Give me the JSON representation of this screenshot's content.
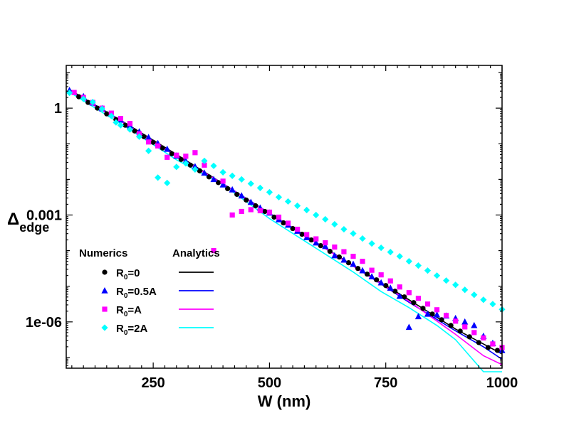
{
  "chart_data": {
    "type": "scatter",
    "title": "",
    "xlabel": "W (nm)",
    "ylabel": {
      "main": "Δ",
      "sub": "edge"
    },
    "xlim": [
      63,
      1000
    ],
    "ylim_log10": [
      -7.3,
      1.2
    ],
    "yscale": "log",
    "grid": false,
    "x_ticks": [
      250,
      500,
      750,
      1000
    ],
    "x_tick_labels": [
      "250",
      "500",
      "750",
      "1000"
    ],
    "y_ticks": [
      1,
      0.001,
      1e-06
    ],
    "y_tick_labels": [
      "1",
      "0.001",
      "1e-06"
    ],
    "legend": {
      "position": "bottom-left",
      "numerics_header": "Numerics",
      "analytics_header": "Analytics",
      "entries": [
        {
          "main": "R",
          "sub": "0",
          "suffix": "=0",
          "color": "#000000",
          "marker": "circle"
        },
        {
          "main": "R",
          "sub": "0",
          "suffix": "=0.5A",
          "color": "#0000ff",
          "marker": "triangle"
        },
        {
          "main": "R",
          "sub": "0",
          "suffix": "=A",
          "color": "#ff00ff",
          "marker": "square"
        },
        {
          "main": "R",
          "sub": "0",
          "suffix": "=2A",
          "color": "#00ffff",
          "marker": "diamond"
        }
      ]
    },
    "series": [
      {
        "name": "R0=0 (Numerics)",
        "kind": "markers",
        "marker": "circle",
        "color": "#000000",
        "x": [
          70,
          90,
          110,
          130,
          150,
          170,
          190,
          210,
          230,
          250,
          270,
          290,
          310,
          330,
          350,
          370,
          390,
          410,
          430,
          450,
          470,
          490,
          510,
          530,
          550,
          570,
          590,
          610,
          630,
          650,
          670,
          690,
          710,
          730,
          750,
          770,
          790,
          810,
          830,
          850,
          870,
          890,
          910,
          930,
          950,
          970,
          990
        ],
        "log10y": [
          0.45,
          0.32,
          0.16,
          0.0,
          -0.16,
          -0.32,
          -0.48,
          -0.64,
          -0.8,
          -0.96,
          -1.12,
          -1.28,
          -1.44,
          -1.6,
          -1.76,
          -1.93,
          -2.09,
          -2.26,
          -2.42,
          -2.58,
          -2.74,
          -2.9,
          -3.06,
          -3.22,
          -3.38,
          -3.54,
          -3.7,
          -3.86,
          -4.02,
          -4.18,
          -4.34,
          -4.5,
          -4.66,
          -4.82,
          -4.98,
          -5.14,
          -5.3,
          -5.46,
          -5.62,
          -5.78,
          -5.94,
          -6.1,
          -6.26,
          -6.42,
          -6.58,
          -6.72,
          -6.8
        ]
      },
      {
        "name": "R0=0.5A (Numerics)",
        "kind": "markers",
        "marker": "triangle",
        "color": "#0000ff",
        "x": [
          70,
          100,
          120,
          140,
          160,
          180,
          200,
          220,
          240,
          260,
          280,
          300,
          320,
          340,
          360,
          380,
          400,
          420,
          440,
          460,
          480,
          500,
          520,
          540,
          560,
          580,
          600,
          620,
          640,
          660,
          680,
          700,
          720,
          740,
          760,
          780,
          800,
          820,
          840,
          860,
          880,
          900,
          920,
          940,
          960,
          980,
          1000
        ],
        "log10y": [
          0.5,
          0.33,
          0.15,
          -0.01,
          -0.17,
          -0.33,
          -0.49,
          -0.66,
          -0.82,
          -0.99,
          -1.15,
          -1.34,
          -1.48,
          -1.64,
          -1.82,
          -2.0,
          -2.15,
          -2.29,
          -2.46,
          -2.64,
          -2.8,
          -2.94,
          -3.13,
          -3.28,
          -3.45,
          -3.63,
          -3.78,
          -3.88,
          -4.14,
          -4.26,
          -4.38,
          -4.56,
          -4.73,
          -4.9,
          -5.05,
          -5.28,
          -6.15,
          -5.85,
          -5.78,
          -5.8,
          -5.83,
          -5.9,
          -6.0,
          -6.1,
          -6.4,
          -6.6,
          -6.8
        ]
      },
      {
        "name": "R0=A (Numerics)",
        "kind": "markers",
        "marker": "square",
        "color": "#ff00ff",
        "x": [
          80,
          100,
          120,
          140,
          160,
          180,
          200,
          220,
          240,
          260,
          280,
          300,
          320,
          340,
          360,
          380,
          400,
          420,
          440,
          460,
          480,
          500,
          520,
          540,
          560,
          580,
          600,
          620,
          640,
          660,
          680,
          700,
          720,
          740,
          760,
          780,
          800,
          820,
          840,
          860,
          880,
          900,
          920,
          940,
          960,
          980,
          1000
        ],
        "log10y": [
          0.44,
          0.3,
          0.16,
          0.0,
          -0.14,
          -0.29,
          -0.43,
          -0.72,
          -0.95,
          -1.06,
          -1.38,
          -1.32,
          -1.35,
          -1.25,
          -1.6,
          -4.0,
          -2.05,
          -3.0,
          -2.9,
          -2.85,
          -2.88,
          -2.92,
          -3.06,
          -3.23,
          -3.4,
          -3.55,
          -3.67,
          -3.78,
          -3.9,
          -4.03,
          -4.16,
          -4.3,
          -4.55,
          -4.68,
          -4.85,
          -5.02,
          -5.18,
          -5.34,
          -5.5,
          -5.66,
          -5.82,
          -5.98,
          -6.14,
          -6.3,
          -6.45,
          -6.62,
          -6.72
        ]
      },
      {
        "name": "R0=2A (Numerics)",
        "kind": "markers",
        "marker": "diamond",
        "color": "#00ffff",
        "x": [
          70,
          100,
          120,
          140,
          160,
          170,
          180,
          200,
          220,
          240,
          260,
          280,
          300,
          320,
          340,
          360,
          380,
          400,
          420,
          440,
          460,
          480,
          500,
          520,
          540,
          560,
          580,
          600,
          620,
          640,
          660,
          680,
          700,
          720,
          740,
          760,
          780,
          800,
          820,
          840,
          860,
          880,
          900,
          920,
          940,
          960,
          980,
          1000
        ],
        "log10y": [
          0.43,
          0.26,
          0.17,
          -0.02,
          -0.22,
          -0.4,
          -0.48,
          -0.6,
          -0.8,
          -1.2,
          -1.95,
          -2.1,
          -1.65,
          -1.55,
          -1.72,
          -1.48,
          -1.62,
          -1.8,
          -1.9,
          -2.0,
          -2.12,
          -2.24,
          -2.36,
          -2.5,
          -2.62,
          -2.74,
          -2.86,
          -3.0,
          -3.12,
          -3.26,
          -3.4,
          -3.52,
          -3.66,
          -3.8,
          -3.92,
          -4.04,
          -4.16,
          -4.3,
          -4.42,
          -4.56,
          -4.7,
          -4.84,
          -4.96,
          -5.1,
          -5.24,
          -5.38,
          -5.5,
          -5.65
        ]
      },
      {
        "name": "R0=0 (Analytics)",
        "kind": "line",
        "color": "#000000",
        "x": [
          70,
          200,
          300,
          400,
          500,
          600,
          700,
          800,
          900,
          950,
          1000
        ],
        "log10y": [
          0.52,
          -0.5,
          -1.3,
          -2.12,
          -2.95,
          -3.77,
          -4.58,
          -5.38,
          -6.2,
          -6.55,
          -6.9
        ]
      },
      {
        "name": "R0=0.5A (Analytics)",
        "kind": "line",
        "color": "#0000ff",
        "x": [
          70,
          200,
          300,
          400,
          500,
          600,
          700,
          800,
          900,
          960,
          1000
        ],
        "log10y": [
          0.5,
          -0.51,
          -1.35,
          -2.12,
          -2.95,
          -3.77,
          -4.6,
          -5.45,
          -6.25,
          -6.7,
          -7.05
        ]
      },
      {
        "name": "R0=A (Analytics)",
        "kind": "line",
        "color": "#ff00ff",
        "x": [
          70,
          200,
          300,
          400,
          500,
          600,
          700,
          800,
          900,
          960,
          1000
        ],
        "log10y": [
          0.48,
          -0.52,
          -1.33,
          -2.13,
          -2.96,
          -3.78,
          -4.6,
          -5.42,
          -6.35,
          -6.95,
          -7.2
        ]
      },
      {
        "name": "R0=2A (Analytics)",
        "kind": "line",
        "color": "#00ffff",
        "x": [
          70,
          200,
          300,
          400,
          500,
          560,
          620,
          680,
          740,
          800,
          860,
          900,
          960,
          1000
        ],
        "log10y": [
          0.45,
          -0.6,
          -1.45,
          -2.15,
          -3.1,
          -3.6,
          -4.1,
          -4.6,
          -5.15,
          -5.6,
          -6.1,
          -6.5,
          -7.4,
          -7.4
        ]
      }
    ]
  }
}
